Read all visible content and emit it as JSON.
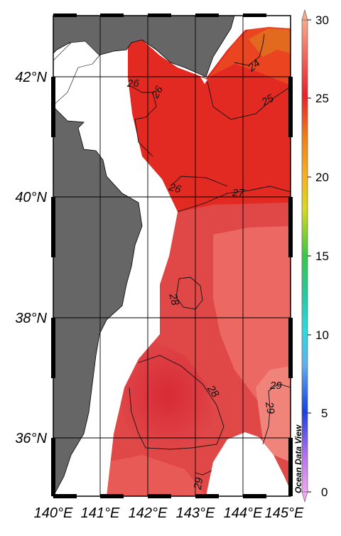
{
  "map": {
    "watermark": "Ocean Data View",
    "lon_labels": [
      "140°E",
      "141°E",
      "142°E",
      "143°E",
      "144°E",
      "145°E"
    ],
    "lat_labels": [
      "42°N",
      "40°N",
      "38°N",
      "36°N"
    ],
    "contour_labels": [
      "24",
      "25",
      "26",
      "26",
      "26",
      "27",
      "28",
      "28",
      "29",
      "29",
      "29"
    ]
  },
  "colorbar": {
    "ticks": [
      "30",
      "25",
      "20",
      "15",
      "10",
      "5",
      "0"
    ],
    "colors": {
      "c30": "#f7a98a",
      "c25": "#e8202a",
      "c22": "#f08018",
      "c20": "#f7b020",
      "c18": "#d8d820",
      "c15": "#38c848",
      "c12": "#28c8a0",
      "c10": "#30d8e0",
      "c7": "#60b0f0",
      "c5": "#1840e0",
      "c2": "#b070f0",
      "c0": "#f0a8f0"
    }
  },
  "colors": {
    "land": "#666666",
    "sea_warm": "#e04848",
    "sea_hot": "#e62020",
    "sea_pale": "#ec6e66",
    "sea_orange": "#ee4a20"
  }
}
